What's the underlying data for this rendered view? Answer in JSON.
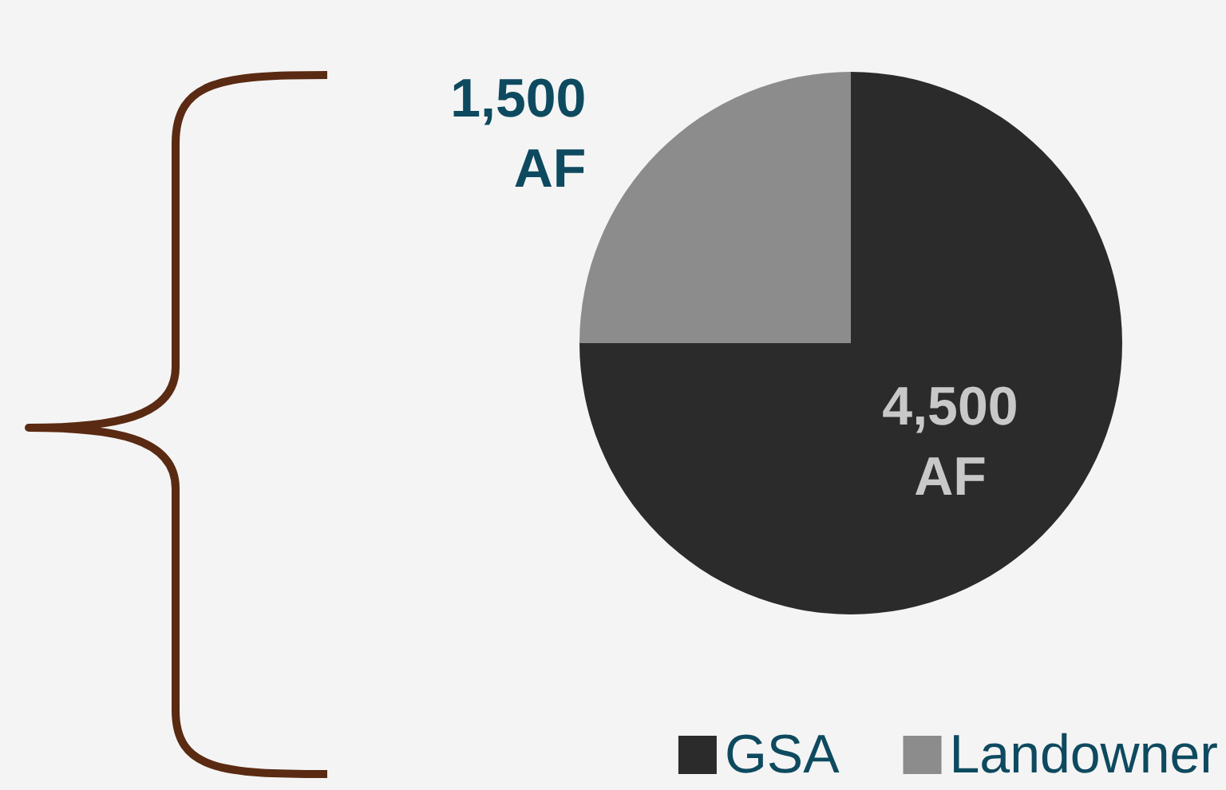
{
  "chart_data": {
    "type": "pie",
    "categories": [
      "GSA",
      "Landowner"
    ],
    "values": [
      4500,
      1500
    ],
    "colors": [
      "#2b2b2b",
      "#8c8c8c"
    ],
    "value_labels": [
      "4,500 AF",
      "1,500 AF"
    ],
    "legend": "bottom right"
  }
}
